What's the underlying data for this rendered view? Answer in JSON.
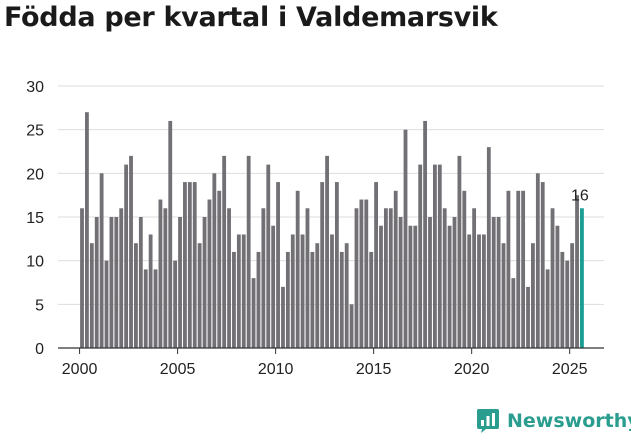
{
  "title": "Födda per kvartal i Valdemarsvik",
  "brand": {
    "name": "Newsworthy",
    "color": "#2a9d8f"
  },
  "colors": {
    "bar": "#727075",
    "highlight": "#1a9e94",
    "axis": "#333333",
    "grid": "#dddddd"
  },
  "chart_data": {
    "type": "bar",
    "title": "Födda per kvartal i Valdemarsvik",
    "xlabel": "",
    "ylabel": "",
    "ylim": [
      0,
      30
    ],
    "yticks": [
      0,
      5,
      10,
      15,
      20,
      25,
      30
    ],
    "xlim": [
      1998.9,
      2026.75
    ],
    "xticks": [
      2000,
      2005,
      2010,
      2015,
      2020,
      2025
    ],
    "start": {
      "year": 2000,
      "quarter": 1
    },
    "values": [
      16,
      27,
      12,
      15,
      20,
      10,
      15,
      15,
      16,
      21,
      22,
      12,
      15,
      9,
      13,
      9,
      17,
      16,
      26,
      10,
      15,
      19,
      19,
      19,
      12,
      15,
      17,
      20,
      18,
      22,
      16,
      11,
      13,
      13,
      22,
      8,
      11,
      16,
      21,
      14,
      19,
      7,
      11,
      13,
      18,
      13,
      16,
      11,
      12,
      19,
      22,
      13,
      19,
      11,
      12,
      5,
      16,
      17,
      17,
      11,
      19,
      14,
      16,
      16,
      18,
      15,
      25,
      14,
      14,
      21,
      26,
      15,
      21,
      21,
      16,
      14,
      15,
      22,
      18,
      13,
      16,
      13,
      13,
      23,
      15,
      15,
      12,
      18,
      8,
      18,
      18,
      7,
      12,
      20,
      19,
      9,
      16,
      14,
      11,
      10,
      12,
      17.5,
      16
    ],
    "highlight_last": true,
    "last_label": "16"
  }
}
